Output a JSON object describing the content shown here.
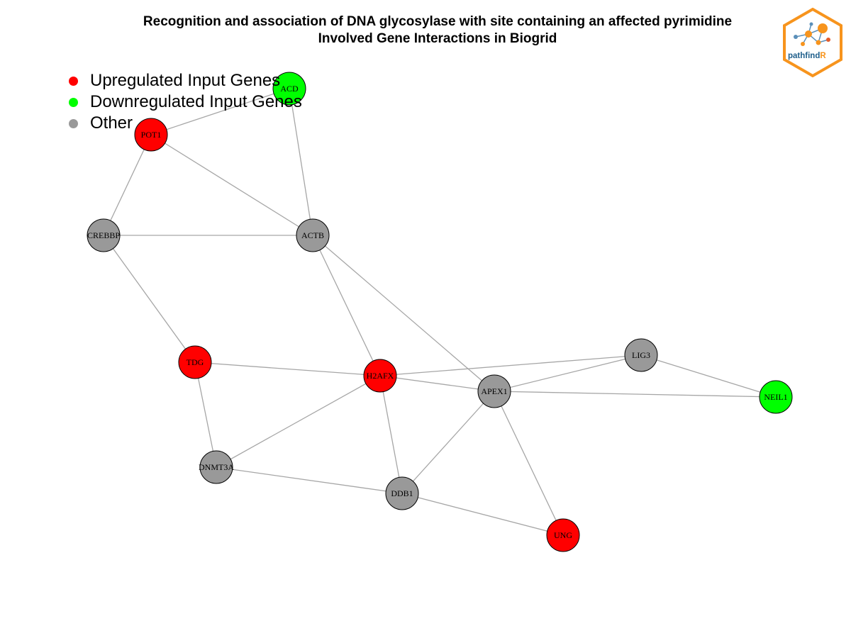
{
  "title": {
    "line1": "Recognition and association of DNA glycosylase with site containing an affected pyrimidine",
    "line2": "Involved Gene Interactions in Biogrid"
  },
  "legend": [
    {
      "label": "Upregulated Input Genes",
      "color": "#ff0000"
    },
    {
      "label": "Downregulated Input Genes",
      "color": "#00ff00"
    },
    {
      "label": "Other",
      "color": "#999999"
    }
  ],
  "logo": {
    "text_main": "pathfind",
    "text_accent": "R",
    "border_color": "#f7941d",
    "text_color": "#1f5f8b"
  },
  "colors": {
    "up": "#ff0000",
    "down": "#00ff00",
    "other": "#999999",
    "edge": "#a6a6a6"
  },
  "nodes": [
    {
      "id": "ACD",
      "status": "down"
    },
    {
      "id": "POT1",
      "status": "up"
    },
    {
      "id": "CREBBP",
      "status": "other"
    },
    {
      "id": "ACTB",
      "status": "other"
    },
    {
      "id": "TDG",
      "status": "up"
    },
    {
      "id": "H2AFX",
      "status": "up"
    },
    {
      "id": "APEX1",
      "status": "other"
    },
    {
      "id": "LIG3",
      "status": "other"
    },
    {
      "id": "NEIL1",
      "status": "down"
    },
    {
      "id": "DNMT3A",
      "status": "other"
    },
    {
      "id": "DDB1",
      "status": "other"
    },
    {
      "id": "UNG",
      "status": "up"
    }
  ],
  "edges": [
    [
      "ACD",
      "POT1"
    ],
    [
      "ACD",
      "ACTB"
    ],
    [
      "POT1",
      "ACTB"
    ],
    [
      "POT1",
      "CREBBP"
    ],
    [
      "CREBBP",
      "ACTB"
    ],
    [
      "CREBBP",
      "TDG"
    ],
    [
      "ACTB",
      "H2AFX"
    ],
    [
      "ACTB",
      "APEX1"
    ],
    [
      "TDG",
      "H2AFX"
    ],
    [
      "TDG",
      "DNMT3A"
    ],
    [
      "H2AFX",
      "APEX1"
    ],
    [
      "H2AFX",
      "LIG3"
    ],
    [
      "H2AFX",
      "DNMT3A"
    ],
    [
      "H2AFX",
      "DDB1"
    ],
    [
      "APEX1",
      "LIG3"
    ],
    [
      "APEX1",
      "NEIL1"
    ],
    [
      "APEX1",
      "DDB1"
    ],
    [
      "APEX1",
      "UNG"
    ],
    [
      "LIG3",
      "NEIL1"
    ],
    [
      "DNMT3A",
      "DDB1"
    ],
    [
      "DDB1",
      "UNG"
    ]
  ]
}
